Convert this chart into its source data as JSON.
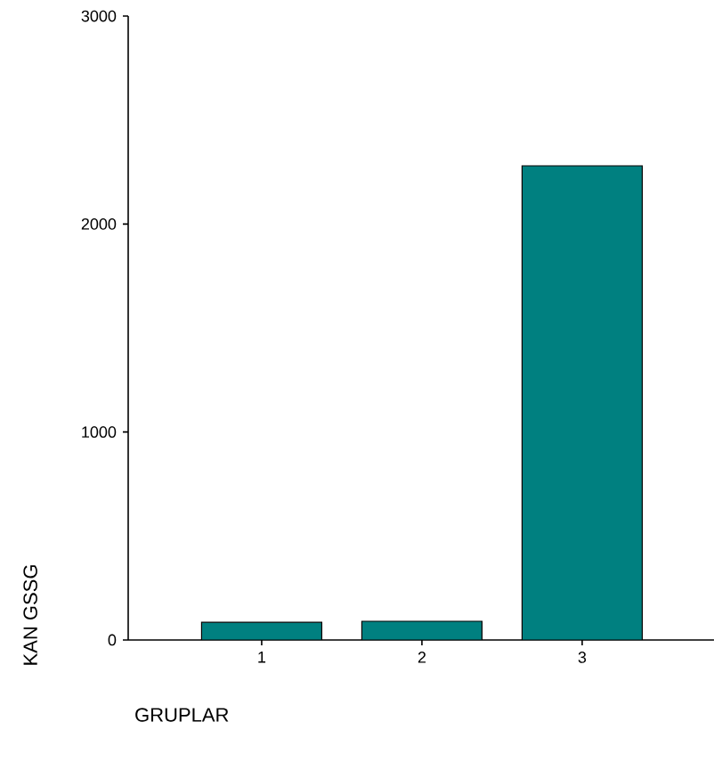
{
  "chart_data": {
    "type": "bar",
    "xlabel": "GRUPLAR",
    "ylabel": "KAN GSSG",
    "categories": [
      "1",
      "2",
      "3"
    ],
    "values": [
      85,
      90,
      2280
    ],
    "color": "#008080",
    "ylim": [
      0,
      3000
    ],
    "yticks": [
      0,
      1000,
      2000,
      3000
    ]
  }
}
